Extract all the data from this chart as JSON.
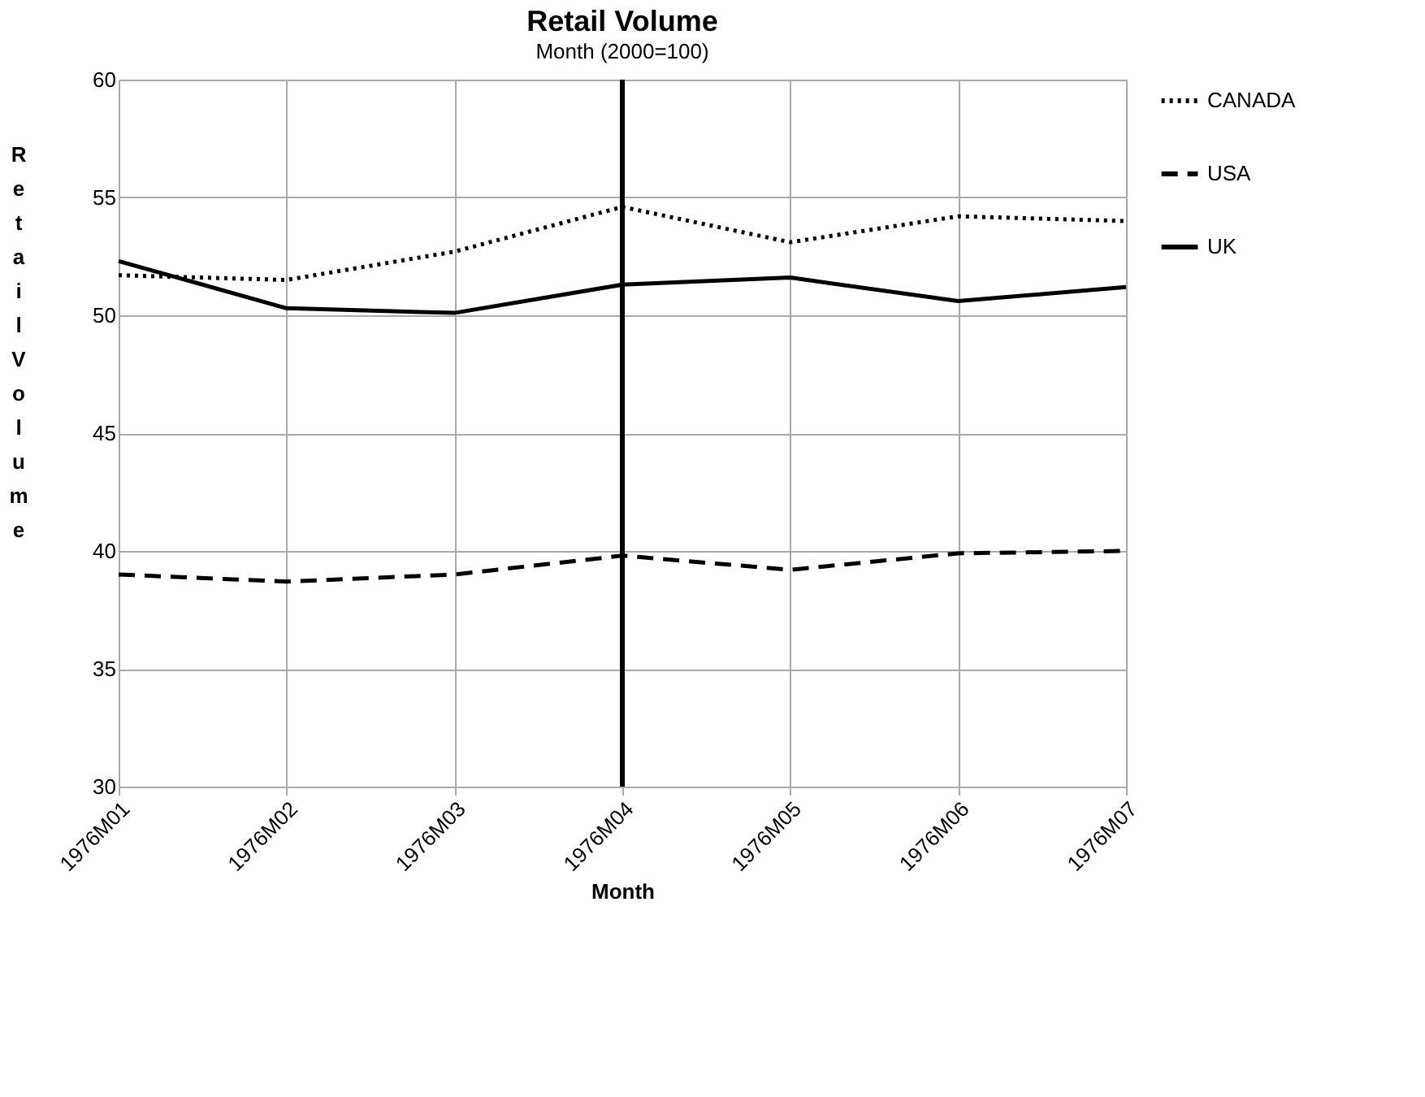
{
  "chart_data": {
    "type": "line",
    "title": "Retail Volume",
    "subtitle": "Month (2000=100)",
    "xlabel": "Month",
    "ylabel": "Retail Volume",
    "categories": [
      "1976M01",
      "1976M02",
      "1976M03",
      "1976M04",
      "1976M05",
      "1976M06",
      "1976M07"
    ],
    "series": [
      {
        "name": "CANADA",
        "color": "#000000",
        "line_style": "dotted",
        "values": [
          51.7,
          51.5,
          52.7,
          54.6,
          53.1,
          54.2,
          54.0
        ]
      },
      {
        "name": "USA",
        "color": "#000000",
        "line_style": "dashed",
        "values": [
          39.0,
          38.7,
          39.0,
          39.8,
          39.2,
          39.9,
          40.0
        ]
      },
      {
        "name": "UK",
        "color": "#000000",
        "line_style": "solid",
        "values": [
          52.3,
          50.3,
          50.1,
          51.3,
          51.6,
          50.6,
          51.2
        ]
      }
    ],
    "ylim": [
      30,
      60
    ],
    "yticks": [
      30,
      35,
      40,
      45,
      50,
      55,
      60
    ],
    "ref_lines": [
      {
        "axis": "x",
        "value": "1976M04",
        "color": "#000000"
      }
    ],
    "grid": true,
    "legend": "right",
    "marker": "none"
  }
}
